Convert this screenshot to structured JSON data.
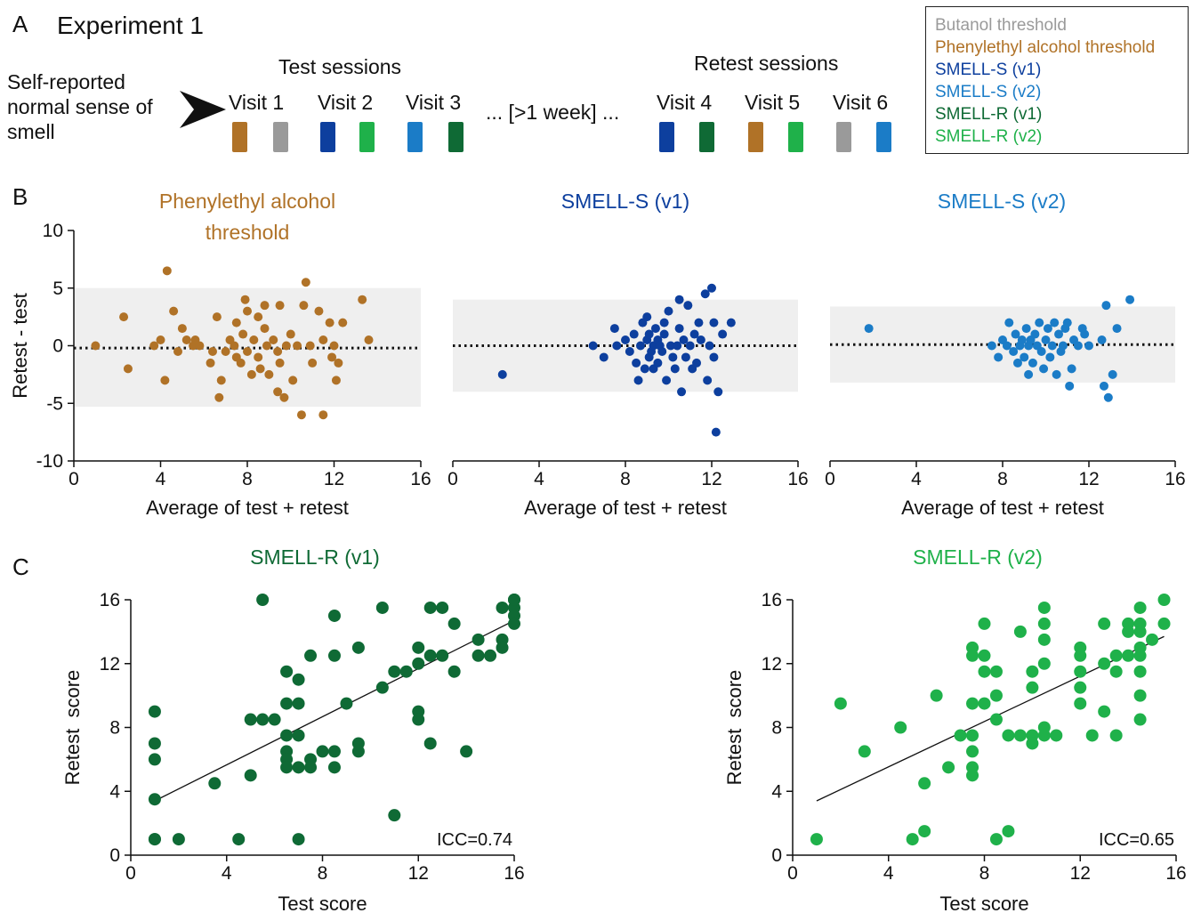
{
  "colors": {
    "butanol": "#9a9a9a",
    "pea": "#b07227",
    "smell_s_v1": "#0d3f9e",
    "smell_s_v2": "#1b7cc7",
    "smell_r_v1": "#0f6a35",
    "smell_r_v2": "#1fb14a"
  },
  "panel_a": {
    "letter": "A",
    "title": "Experiment 1",
    "intro": [
      "Self-reported",
      "normal sense of",
      "smell"
    ],
    "test_header": "Test sessions",
    "retest_header": "Retest sessions",
    "gap_label": "... [>1 week] ...",
    "visits": [
      {
        "label": "Visit 1",
        "tests": [
          "pea",
          "butanol"
        ]
      },
      {
        "label": "Visit 2",
        "tests": [
          "smell_s_v1",
          "smell_r_v2"
        ]
      },
      {
        "label": "Visit 3",
        "tests": [
          "smell_s_v2",
          "smell_r_v1"
        ]
      },
      {
        "label": "Visit 4",
        "tests": [
          "smell_s_v1",
          "smell_r_v1"
        ]
      },
      {
        "label": "Visit 5",
        "tests": [
          "pea",
          "smell_r_v2"
        ]
      },
      {
        "label": "Visit 6",
        "tests": [
          "butanol",
          "smell_s_v2"
        ]
      }
    ],
    "legend": [
      {
        "label": "Butanol threshold",
        "color_key": "butanol"
      },
      {
        "label": "Phenylethyl alcohol threshold",
        "color_key": "pea"
      },
      {
        "label": "SMELL-S (v1)",
        "color_key": "smell_s_v1"
      },
      {
        "label": "SMELL-S (v2)",
        "color_key": "smell_s_v2"
      },
      {
        "label": "SMELL-R (v1)",
        "color_key": "smell_r_v1"
      },
      {
        "label": "SMELL-R (v2)",
        "color_key": "smell_r_v2"
      }
    ]
  },
  "panel_b_letter": "B",
  "panel_c_letter": "C",
  "chart_data": [
    {
      "id": "b1",
      "type": "scatter",
      "title": "Phenylethyl alcohol threshold",
      "title_lines": [
        "Phenylethyl alcohol",
        "threshold"
      ],
      "color_key": "pea",
      "xlabel": "Average of test + retest",
      "ylabel": "Retest - test",
      "xlim": [
        0,
        16
      ],
      "ylim": [
        -10,
        10
      ],
      "xticks": [
        0,
        4,
        8,
        12,
        16
      ],
      "yticks": [
        -10,
        -5,
        0,
        5,
        10
      ],
      "limits_band": [
        -5.3,
        5
      ],
      "mean_line": -0.2,
      "x": [
        1,
        2.3,
        2.5,
        3.7,
        4,
        4.2,
        4.3,
        4.6,
        4.8,
        5,
        5.2,
        5.5,
        5.6,
        5.8,
        6.3,
        6.4,
        6.6,
        6.7,
        6.8,
        7,
        7.2,
        7.4,
        7.5,
        7.5,
        7.7,
        7.8,
        7.9,
        8,
        8,
        8.2,
        8.3,
        8.5,
        8.5,
        8.6,
        8.8,
        8.8,
        8.9,
        9,
        9.2,
        9.4,
        9.4,
        9.5,
        9.5,
        9.7,
        9.8,
        10,
        10.1,
        10.3,
        10.5,
        10.6,
        10.7,
        10.9,
        11,
        11.3,
        11.5,
        11.5,
        11.8,
        11.9,
        12,
        12.1,
        12.2,
        12.4,
        13.3,
        13.6
      ],
      "y": [
        0,
        2.5,
        -2,
        0,
        0.5,
        -3,
        6.5,
        3,
        -0.5,
        1.5,
        0.5,
        0,
        0.5,
        0,
        -1.5,
        -0.5,
        2.5,
        -4.5,
        -3,
        -0.5,
        0.5,
        0,
        -1,
        2,
        -1.5,
        1,
        4,
        3,
        -0.5,
        -2.5,
        0.5,
        2.5,
        -1,
        -2,
        3.5,
        1.5,
        0,
        -2.5,
        0.5,
        -0.5,
        -4,
        -1.5,
        3.5,
        -4.5,
        0,
        1,
        -3,
        0,
        -6,
        3.5,
        5.5,
        0,
        -1.5,
        3,
        -6,
        0.5,
        2,
        -1,
        0,
        -3,
        -1.5,
        2,
        4,
        0.5
      ]
    },
    {
      "id": "b2",
      "type": "scatter",
      "title": "SMELL-S (v1)",
      "title_lines": [
        "SMELL-S (v1)"
      ],
      "color_key": "smell_s_v1",
      "xlabel": "Average of test + retest",
      "ylabel": "",
      "xlim": [
        0,
        16
      ],
      "ylim": [
        -10,
        10
      ],
      "xticks": [
        0,
        4,
        8,
        12,
        16
      ],
      "yticks": [],
      "limits_band": [
        -4,
        4
      ],
      "mean_line": 0,
      "x": [
        2.3,
        6.5,
        7,
        7.5,
        7.6,
        8,
        8.2,
        8.4,
        8.5,
        8.6,
        8.7,
        8.8,
        8.9,
        9,
        9,
        9.1,
        9.1,
        9.2,
        9.3,
        9.3,
        9.4,
        9.5,
        9.5,
        9.6,
        9.7,
        9.8,
        9.8,
        9.9,
        10,
        10.1,
        10.2,
        10.3,
        10.4,
        10.5,
        10.5,
        10.6,
        10.7,
        10.8,
        10.9,
        11,
        11.1,
        11.2,
        11.3,
        11.4,
        11.5,
        11.7,
        11.8,
        11.9,
        12,
        12.1,
        12.1,
        12.2,
        12.3,
        12.5,
        12.9
      ],
      "y": [
        -2.5,
        0,
        -1,
        1.5,
        0,
        0.5,
        -0.5,
        1,
        -1.5,
        -3,
        0,
        2,
        -2,
        0.5,
        2.5,
        -1,
        1,
        -0.5,
        0,
        -2,
        1.5,
        -1.5,
        0.5,
        0,
        -0.5,
        1,
        2,
        -3,
        3,
        0,
        -1,
        -2,
        0,
        1.5,
        4,
        -4,
        0.5,
        -1,
        3.5,
        0,
        -2,
        1,
        -1.5,
        2,
        0.5,
        4.5,
        -3,
        0,
        5,
        -1,
        2,
        -7.5,
        -4,
        1,
        2
      ]
    },
    {
      "id": "b3",
      "type": "scatter",
      "title": "SMELL-S (v2)",
      "title_lines": [
        "SMELL-S (v2)"
      ],
      "color_key": "smell_s_v2",
      "xlabel": "Average of test + retest",
      "ylabel": "",
      "xlim": [
        0,
        16
      ],
      "ylim": [
        -10,
        10
      ],
      "xticks": [
        0,
        4,
        8,
        12,
        16
      ],
      "yticks": [],
      "limits_band": [
        -3.2,
        3.4
      ],
      "mean_line": 0.1,
      "x": [
        1.8,
        7.5,
        7.8,
        8,
        8.2,
        8.3,
        8.5,
        8.6,
        8.7,
        8.8,
        8.9,
        9,
        9.1,
        9.2,
        9.2,
        9.3,
        9.4,
        9.5,
        9.6,
        9.7,
        9.8,
        9.9,
        10,
        10.1,
        10.2,
        10.3,
        10.4,
        10.5,
        10.6,
        10.7,
        10.8,
        10.9,
        11,
        11.1,
        11.2,
        11.3,
        11.5,
        11.7,
        11.8,
        12,
        12.6,
        12.7,
        12.8,
        12.9,
        13.1,
        13.3,
        13.9
      ],
      "y": [
        1.5,
        0,
        -1,
        0.5,
        0,
        2,
        -0.5,
        1,
        -1.5,
        0,
        0.5,
        -1,
        1.5,
        -2.5,
        0,
        0.5,
        -1.5,
        1,
        0,
        2,
        -0.5,
        -2,
        0.5,
        1.5,
        -1,
        0,
        2,
        -2.5,
        1,
        -0.5,
        0,
        1.5,
        2,
        -3.5,
        -2,
        0.5,
        0,
        1.5,
        1,
        0,
        0.5,
        -3.5,
        3.5,
        -4.5,
        -2.5,
        1.5,
        4
      ]
    },
    {
      "id": "c1",
      "type": "scatter",
      "title": "SMELL-R (v1)",
      "title_lines": [
        "SMELL-R (v1)"
      ],
      "color_key": "smell_r_v1",
      "xlabel": "Test score",
      "ylabel": "Retest  score",
      "xlim": [
        0,
        16
      ],
      "ylim": [
        0,
        16
      ],
      "xticks": [
        0,
        4,
        8,
        12,
        16
      ],
      "yticks": [
        0,
        4,
        8,
        12,
        16
      ],
      "annotation": "ICC=0.74",
      "fit_line": [
        [
          1,
          3.4
        ],
        [
          16,
          14.7
        ]
      ],
      "x": [
        1,
        1,
        1,
        1,
        1,
        1,
        2,
        3.5,
        4.5,
        5,
        5,
        5.5,
        5.5,
        6,
        6.5,
        6.5,
        6.5,
        6.5,
        6.5,
        6.5,
        7,
        7,
        7,
        7,
        7,
        7.5,
        7.5,
        7.5,
        8,
        8.5,
        8.5,
        8.5,
        8.5,
        9,
        9.5,
        9.5,
        9.5,
        10.5,
        10.5,
        11,
        11,
        11.5,
        12,
        12,
        12,
        12,
        12.5,
        12.5,
        12.5,
        13,
        13,
        13.5,
        13.5,
        14,
        14.5,
        14.5,
        15,
        15.5,
        15.5,
        15.5,
        16,
        16,
        16,
        16,
        16
      ],
      "y": [
        9,
        7,
        6,
        3.5,
        1,
        1,
        1,
        4.5,
        1,
        8.5,
        5,
        16,
        8.5,
        8.5,
        11.5,
        9.5,
        6.5,
        6,
        5.5,
        7.5,
        11,
        9.5,
        7.5,
        1,
        5.5,
        12.5,
        6,
        5.5,
        6.5,
        15,
        12.5,
        6.5,
        5.5,
        9.5,
        13,
        7,
        6.5,
        15.5,
        10.5,
        11.5,
        2.5,
        11.5,
        13,
        12,
        9,
        8.5,
        15.5,
        12.5,
        7,
        15.5,
        12.5,
        14.5,
        11.5,
        6.5,
        13.5,
        12.5,
        12.5,
        15.5,
        13.5,
        13,
        16,
        15.5,
        15,
        14.5,
        16
      ]
    },
    {
      "id": "c2",
      "type": "scatter",
      "title": "SMELL-R (v2)",
      "title_lines": [
        "SMELL-R (v2)"
      ],
      "color_key": "smell_r_v2",
      "xlabel": "Test score",
      "ylabel": "Retest  score",
      "xlim": [
        0,
        16
      ],
      "ylim": [
        0,
        16
      ],
      "xticks": [
        0,
        4,
        8,
        12,
        16
      ],
      "yticks": [
        0,
        4,
        8,
        12,
        16
      ],
      "annotation": "ICC=0.65",
      "fit_line": [
        [
          1,
          3.4
        ],
        [
          15.5,
          13.7
        ]
      ],
      "x": [
        1,
        2,
        3,
        4.5,
        5,
        5.5,
        5.5,
        6,
        6.5,
        7,
        7.5,
        7.5,
        7.5,
        7.5,
        7.5,
        7.5,
        7.5,
        8,
        8,
        8,
        8,
        8.5,
        8.5,
        8.5,
        8.5,
        9,
        9,
        9.5,
        9.5,
        10,
        10,
        10,
        10,
        10.5,
        10.5,
        10.5,
        10.5,
        10.5,
        10.5,
        11,
        12,
        12,
        12,
        12,
        12,
        12.5,
        13,
        13,
        13,
        13.5,
        13.5,
        13.5,
        14,
        14,
        14,
        14.5,
        14.5,
        14.5,
        14.5,
        14.5,
        14.5,
        14.5,
        14.5,
        15,
        15.5,
        15.5
      ],
      "y": [
        1,
        9.5,
        6.5,
        8,
        1,
        1.5,
        4.5,
        10,
        5.5,
        7.5,
        13,
        12.5,
        9.5,
        7.5,
        6.5,
        5.5,
        5,
        14.5,
        12.5,
        11.5,
        9.5,
        11.5,
        10,
        8.5,
        1,
        7.5,
        1.5,
        14,
        7.5,
        11.5,
        10.5,
        7.5,
        7,
        15.5,
        14.5,
        13.5,
        12,
        8,
        7.5,
        7.5,
        13,
        12.5,
        11.5,
        10.5,
        9.5,
        7.5,
        14.5,
        12,
        9,
        12.5,
        11.5,
        7.5,
        14.5,
        14,
        12.5,
        15.5,
        14.5,
        14,
        13,
        12.5,
        11.5,
        10,
        8.5,
        13.5,
        16,
        14.5
      ]
    }
  ]
}
